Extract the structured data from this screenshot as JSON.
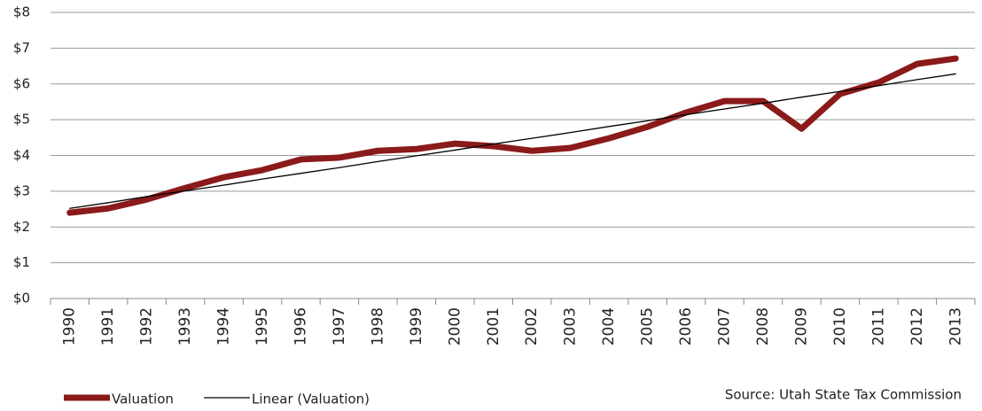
{
  "chart_data": {
    "type": "line",
    "categories": [
      "1990",
      "1991",
      "1992",
      "1993",
      "1994",
      "1995",
      "1996",
      "1997",
      "1998",
      "1999",
      "2000",
      "2001",
      "2002",
      "2003",
      "2004",
      "2005",
      "2006",
      "2007",
      "2008",
      "2009",
      "2010",
      "2011",
      "2012",
      "2013"
    ],
    "series": [
      {
        "name": "Valuation",
        "color": "#8b1a1a",
        "width": 7,
        "values": [
          2.4,
          2.52,
          2.77,
          3.09,
          3.39,
          3.59,
          3.89,
          3.94,
          4.13,
          4.18,
          4.33,
          4.26,
          4.13,
          4.21,
          4.48,
          4.8,
          5.2,
          5.52,
          5.52,
          4.75,
          5.72,
          6.04,
          6.56,
          6.71
        ]
      },
      {
        "name": "Linear (Valuation)",
        "color": "#000000",
        "width": 1.3,
        "values": [
          2.52,
          2.68,
          2.85,
          3.01,
          3.17,
          3.34,
          3.5,
          3.66,
          3.83,
          3.99,
          4.15,
          4.32,
          4.48,
          4.64,
          4.81,
          4.97,
          5.14,
          5.3,
          5.46,
          5.63,
          5.79,
          5.95,
          6.12,
          6.28
        ]
      }
    ],
    "ylim": [
      0,
      8
    ],
    "yticks": [
      {
        "value": 0,
        "label": "$0"
      },
      {
        "value": 1,
        "label": "$1"
      },
      {
        "value": 2,
        "label": "$2"
      },
      {
        "value": 3,
        "label": "$3"
      },
      {
        "value": 4,
        "label": "$4"
      },
      {
        "value": 5,
        "label": "$5"
      },
      {
        "value": 6,
        "label": "$6"
      },
      {
        "value": 7,
        "label": "$7"
      },
      {
        "value": 8,
        "label": "$8"
      }
    ],
    "grid": true,
    "legend": "bottom-left",
    "annotation": "Source: Utah State Tax Commission"
  }
}
